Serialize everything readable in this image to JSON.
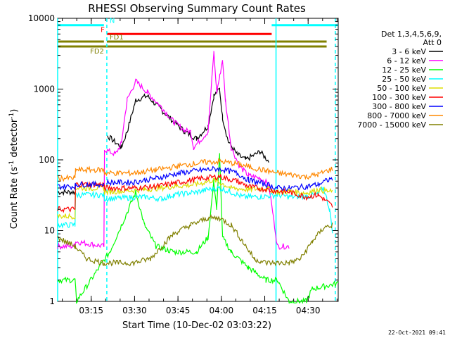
{
  "chart_data": {
    "type": "line",
    "title": "RHESSI Observing Summary Count Rates",
    "xlabel": "Start Time (10-Dec-02 03:03:22)",
    "ylabel_main": "Count Rate (s",
    "ylabel_sup1": "-1",
    "ylabel_mid": " detector",
    "ylabel_sup2": "-1",
    "ylabel_end": ")",
    "x_unit": "minutes after 03:03:22",
    "xlim": [
      0,
      97
    ],
    "ylim": [
      1,
      10000
    ],
    "y_scale": "log",
    "x_ticks": [
      {
        "x": 11.6,
        "label": "03:15"
      },
      {
        "x": 26.6,
        "label": "03:30"
      },
      {
        "x": 41.6,
        "label": "03:45"
      },
      {
        "x": 56.6,
        "label": "04:00"
      },
      {
        "x": 71.6,
        "label": "04:15"
      },
      {
        "x": 86.6,
        "label": "04:30"
      }
    ],
    "y_ticks": [
      {
        "y": 1,
        "label": "1"
      },
      {
        "y": 10,
        "label": "10"
      },
      {
        "y": 100,
        "label": "100"
      },
      {
        "y": 1000,
        "label": "1000"
      },
      {
        "y": 10000,
        "label": "10000"
      }
    ],
    "legend": {
      "position": "right",
      "header_line1": "Det 1,3,4,5,6,9,",
      "header_line2": "Att 0"
    },
    "series": [
      {
        "name": "3 - 6 keV",
        "color": "#000000",
        "points": [
          [
            0,
            35
          ],
          [
            6,
            35
          ],
          [
            6.2,
            0
          ],
          [
            17,
            0
          ],
          [
            17.2,
            220
          ],
          [
            22,
            150
          ],
          [
            24,
            250
          ],
          [
            27,
            700
          ],
          [
            31,
            800
          ],
          [
            36,
            500
          ],
          [
            40,
            350
          ],
          [
            44,
            250
          ],
          [
            48,
            200
          ],
          [
            52,
            300
          ],
          [
            54,
            800
          ],
          [
            56,
            1000
          ],
          [
            57,
            400
          ],
          [
            59,
            180
          ],
          [
            62,
            120
          ],
          [
            65,
            100
          ],
          [
            70,
            130
          ],
          [
            73,
            95
          ],
          [
            76,
            0
          ]
        ]
      },
      {
        "name": "6 - 12 keV",
        "color": "#ff00ff",
        "points": [
          [
            0,
            6
          ],
          [
            6,
            6
          ],
          [
            6.2,
            7
          ],
          [
            16,
            6
          ],
          [
            16.2,
            140
          ],
          [
            20,
            120
          ],
          [
            22,
            170
          ],
          [
            24,
            700
          ],
          [
            27,
            1300
          ],
          [
            31,
            900
          ],
          [
            36,
            550
          ],
          [
            40,
            350
          ],
          [
            44,
            260
          ],
          [
            46,
            250
          ],
          [
            47,
            150
          ],
          [
            52,
            250
          ],
          [
            54,
            3300
          ],
          [
            55,
            900
          ],
          [
            56,
            1500
          ],
          [
            57,
            2600
          ],
          [
            58,
            700
          ],
          [
            60,
            150
          ],
          [
            63,
            80
          ],
          [
            66,
            60
          ],
          [
            70,
            55
          ],
          [
            73,
            45
          ],
          [
            76,
            6
          ],
          [
            80,
            6
          ]
        ]
      },
      {
        "name": "12 - 25 keV",
        "color": "#00ff00",
        "points": [
          [
            0,
            2
          ],
          [
            6,
            2
          ],
          [
            6.5,
            1
          ],
          [
            18,
            5
          ],
          [
            24,
            18
          ],
          [
            27,
            35
          ],
          [
            30,
            12
          ],
          [
            34,
            6
          ],
          [
            40,
            5
          ],
          [
            48,
            5
          ],
          [
            52,
            8
          ],
          [
            54,
            50
          ],
          [
            55,
            20
          ],
          [
            56,
            120
          ],
          [
            57,
            8
          ],
          [
            60,
            5
          ],
          [
            66,
            3
          ],
          [
            72,
            2
          ],
          [
            76,
            2
          ],
          [
            80,
            1
          ],
          [
            86,
            1
          ],
          [
            88,
            1.5
          ],
          [
            97,
            1.8
          ]
        ]
      },
      {
        "name": "25 - 50 keV",
        "color": "#00ffff",
        "points": [
          [
            0,
            12
          ],
          [
            6,
            12
          ],
          [
            6.2,
            32
          ],
          [
            16,
            32
          ],
          [
            16.2,
            28
          ],
          [
            30,
            30
          ],
          [
            36,
            28
          ],
          [
            40,
            32
          ],
          [
            48,
            35
          ],
          [
            52,
            38
          ],
          [
            56,
            40
          ],
          [
            60,
            35
          ],
          [
            64,
            30
          ],
          [
            70,
            30
          ],
          [
            76,
            32
          ],
          [
            80,
            30
          ],
          [
            86,
            30
          ],
          [
            90,
            33
          ],
          [
            92,
            40
          ],
          [
            94,
            20
          ],
          [
            95,
            10
          ]
        ]
      },
      {
        "name": "50 - 100 keV",
        "color": "#dddd00",
        "points": [
          [
            0,
            16
          ],
          [
            6,
            16
          ],
          [
            6.2,
            40
          ],
          [
            16,
            40
          ],
          [
            16.2,
            35
          ],
          [
            30,
            38
          ],
          [
            40,
            42
          ],
          [
            48,
            45
          ],
          [
            54,
            52
          ],
          [
            56,
            48
          ],
          [
            60,
            40
          ],
          [
            66,
            38
          ],
          [
            72,
            40
          ],
          [
            76,
            35
          ],
          [
            80,
            36
          ],
          [
            86,
            34
          ],
          [
            90,
            38
          ],
          [
            95,
            35
          ]
        ]
      },
      {
        "name": "100 - 300 keV",
        "color": "#ff0000",
        "points": [
          [
            0,
            20
          ],
          [
            6,
            20
          ],
          [
            6.2,
            45
          ],
          [
            16,
            45
          ],
          [
            16.2,
            40
          ],
          [
            26,
            40
          ],
          [
            34,
            42
          ],
          [
            42,
            48
          ],
          [
            50,
            55
          ],
          [
            56,
            58
          ],
          [
            62,
            50
          ],
          [
            66,
            42
          ],
          [
            72,
            38
          ],
          [
            76,
            36
          ],
          [
            80,
            35
          ],
          [
            86,
            30
          ],
          [
            90,
            32
          ],
          [
            92,
            28
          ],
          [
            95,
            22
          ]
        ]
      },
      {
        "name": "300 - 800 keV",
        "color": "#0000ff",
        "points": [
          [
            0,
            42
          ],
          [
            6,
            42
          ],
          [
            6.2,
            45
          ],
          [
            16,
            45
          ],
          [
            16.2,
            0
          ],
          [
            17,
            48
          ],
          [
            26,
            48
          ],
          [
            34,
            55
          ],
          [
            42,
            65
          ],
          [
            50,
            72
          ],
          [
            56,
            75
          ],
          [
            62,
            65
          ],
          [
            66,
            52
          ],
          [
            72,
            45
          ],
          [
            76,
            40
          ],
          [
            80,
            40
          ],
          [
            86,
            42
          ],
          [
            90,
            45
          ],
          [
            95,
            55
          ]
        ]
      },
      {
        "name": "800 - 7000 keV",
        "color": "#ff8800",
        "points": [
          [
            0,
            55
          ],
          [
            6,
            55
          ],
          [
            6.2,
            72
          ],
          [
            16,
            72
          ],
          [
            16.2,
            65
          ],
          [
            26,
            65
          ],
          [
            34,
            72
          ],
          [
            42,
            82
          ],
          [
            50,
            92
          ],
          [
            56,
            95
          ],
          [
            62,
            88
          ],
          [
            66,
            80
          ],
          [
            72,
            70
          ],
          [
            76,
            65
          ],
          [
            80,
            62
          ],
          [
            86,
            58
          ],
          [
            90,
            62
          ],
          [
            95,
            75
          ]
        ]
      },
      {
        "name": "7000 - 15000 keV",
        "color": "#808000",
        "points": [
          [
            0,
            8
          ],
          [
            6,
            6
          ],
          [
            10,
            4
          ],
          [
            16,
            3.5
          ],
          [
            26,
            3.5
          ],
          [
            32,
            4
          ],
          [
            36,
            6
          ],
          [
            40,
            9
          ],
          [
            46,
            12
          ],
          [
            52,
            15
          ],
          [
            56,
            15
          ],
          [
            60,
            12
          ],
          [
            64,
            7
          ],
          [
            68,
            4
          ],
          [
            72,
            3.5
          ],
          [
            76,
            3.5
          ],
          [
            80,
            3.5
          ],
          [
            84,
            4
          ],
          [
            88,
            7
          ],
          [
            92,
            11
          ],
          [
            95,
            12
          ]
        ]
      }
    ],
    "flag_bars": [
      {
        "label": "N",
        "color": "#00ffff",
        "y": 8000,
        "segments": [
          [
            0,
            16
          ],
          [
            74,
            97
          ]
        ]
      },
      {
        "label": "F",
        "color": "#ff0000",
        "y": 6000,
        "segments": [
          [
            17,
            74
          ]
        ]
      },
      {
        "label": "FD1",
        "color": "#808000",
        "y": 4700,
        "segments": [
          [
            0,
            16
          ],
          [
            17,
            74
          ],
          [
            74,
            93
          ]
        ]
      },
      {
        "label": "FD2",
        "color": "#808000",
        "y": 4000,
        "segments": [
          [
            0,
            93
          ]
        ]
      }
    ],
    "vertical_markers": [
      {
        "x": 0,
        "color": "#00ffff",
        "style": "solid"
      },
      {
        "x": 17,
        "color": "#00ffff",
        "style": "dashed"
      },
      {
        "x": 75.5,
        "color": "#00ffff",
        "style": "solid"
      },
      {
        "x": 96,
        "color": "#00ffff",
        "style": "dashed"
      }
    ]
  },
  "timestamp": "22-Oct-2021 09:41"
}
